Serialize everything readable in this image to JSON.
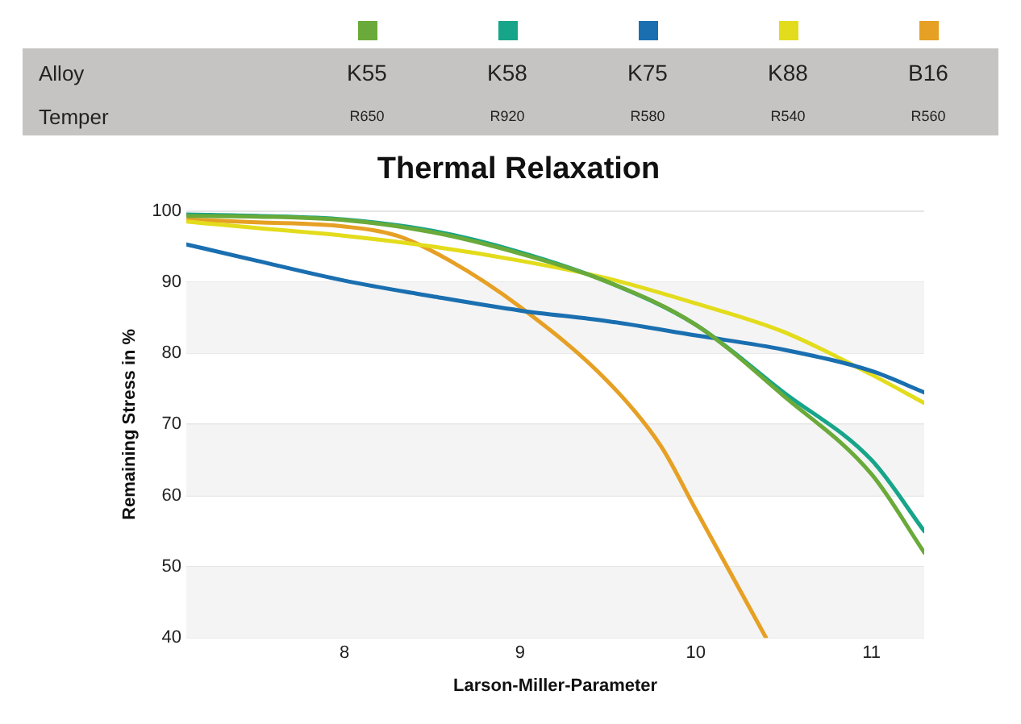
{
  "chart_data": {
    "type": "line",
    "title": "Thermal Relaxation",
    "xlabel": "Larson-Miller-Parameter",
    "ylabel": "Remaining Stress in %",
    "legend_title": "Alloy",
    "annotations": [
      "Temper",
      "R650",
      "R920",
      "R580",
      "R540",
      "R560"
    ],
    "xlim": [
      7.1,
      11.3
    ],
    "xticks": [
      8,
      9,
      10,
      11
    ],
    "ylim": [
      40,
      100
    ],
    "yticks": [
      40,
      50,
      60,
      70,
      80,
      90,
      100
    ],
    "grid": "y",
    "legend": "top",
    "marker": "none",
    "line_style": "solid",
    "bands": [
      {
        "axis": "y",
        "from": 40,
        "to": 50,
        "color": "#f4f4f4"
      },
      {
        "axis": "y",
        "from": 60,
        "to": 70,
        "color": "#f4f4f4"
      },
      {
        "axis": "y",
        "from": 80,
        "to": 90,
        "color": "#f4f4f4"
      }
    ],
    "series": [
      {
        "name": "K55",
        "color": "#6aaa3a",
        "x": [
          7.1,
          7.5,
          8,
          8.5,
          9,
          9.5,
          10,
          10.5,
          11,
          11.3
        ],
        "values": [
          99.3,
          99.2,
          98.7,
          97,
          94,
          90,
          84,
          74,
          63,
          52
        ]
      },
      {
        "name": "K58",
        "color": "#17a589",
        "x": [
          7.1,
          7.5,
          8,
          8.5,
          9,
          9.5,
          10,
          10.5,
          11,
          11.3
        ],
        "values": [
          99.5,
          99.3,
          98.8,
          97.2,
          94.2,
          90,
          84,
          74.5,
          65,
          55
        ]
      },
      {
        "name": "K75",
        "color": "#1a6fb0",
        "x": [
          7.1,
          7.5,
          8,
          8.5,
          9,
          9.5,
          10,
          10.5,
          11,
          11.3
        ],
        "values": [
          95.3,
          93,
          90.2,
          88,
          86,
          84.5,
          82.5,
          80.5,
          77.5,
          74.5
        ]
      },
      {
        "name": "K88",
        "color": "#e3dc1c",
        "x": [
          7.1,
          7.5,
          8,
          8.5,
          9,
          9.5,
          10,
          10.5,
          11,
          11.3
        ],
        "values": [
          98.5,
          97.6,
          96.5,
          95,
          93,
          90.5,
          87,
          83,
          77,
          73
        ]
      },
      {
        "name": "B16",
        "color": "#e6a024",
        "x": [
          7.1,
          7.5,
          8,
          8.3,
          8.6,
          9,
          9.5,
          9.8,
          10,
          10.2,
          10.4
        ],
        "values": [
          98.8,
          98.4,
          97.8,
          96.5,
          93,
          86.5,
          76,
          67,
          58,
          49,
          40
        ]
      }
    ]
  }
}
